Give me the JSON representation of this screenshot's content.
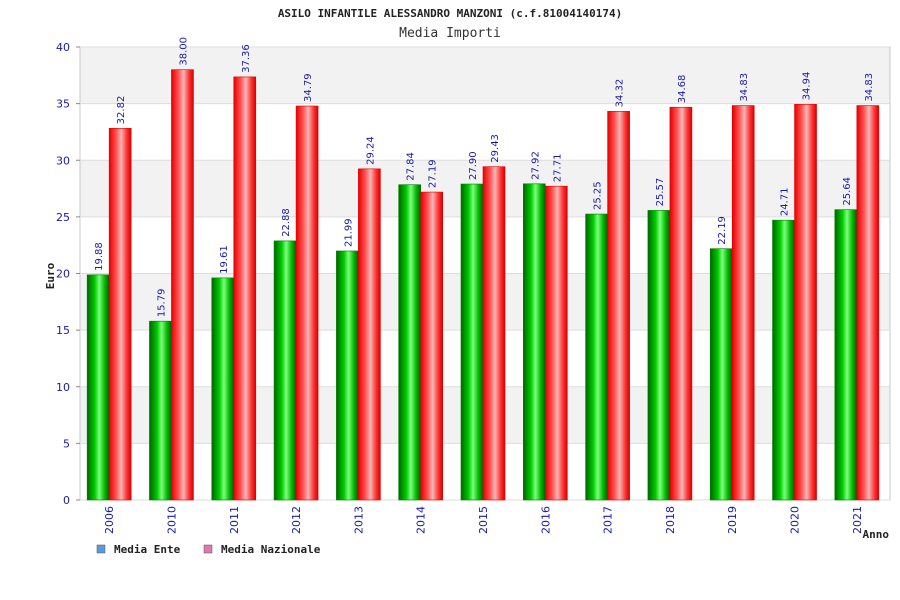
{
  "chart_data": {
    "type": "bar",
    "title": "ASILO INFANTILE ALESSANDRO MANZONI (c.f.81004140174)",
    "subtitle": "Media Importi",
    "xlabel": "Anno",
    "ylabel": "Euro",
    "ylim": [
      0,
      40
    ],
    "yticks": [
      "0",
      "5",
      "10",
      "15",
      "20",
      "25",
      "30",
      "35",
      "40"
    ],
    "categories": [
      "2006",
      "2010",
      "2011",
      "2012",
      "2013",
      "2014",
      "2015",
      "2016",
      "2017",
      "2018",
      "2019",
      "2020",
      "2021"
    ],
    "series": [
      {
        "name": "Media Ente",
        "color": "#00c000",
        "legend_color": "#5b9bd5",
        "values": [
          19.88,
          15.79,
          19.61,
          22.88,
          21.99,
          27.84,
          27.9,
          27.92,
          25.25,
          25.57,
          22.19,
          24.71,
          25.64
        ],
        "labels": [
          "19.88",
          "15.79",
          "19.61",
          "22.88",
          "21.99",
          "27.84",
          "27.90",
          "27.92",
          "25.25",
          "25.57",
          "22.19",
          "24.71",
          "25.64"
        ]
      },
      {
        "name": "Media Nazionale",
        "color": "#ff1a1a",
        "legend_color": "#d97bb0",
        "values": [
          32.82,
          38.0,
          37.36,
          34.79,
          29.24,
          27.19,
          29.43,
          27.71,
          34.32,
          34.68,
          34.83,
          34.94,
          34.83
        ],
        "labels": [
          "32.82",
          "38.00",
          "37.36",
          "34.79",
          "29.24",
          "27.19",
          "29.43",
          "27.71",
          "34.32",
          "34.68",
          "34.83",
          "34.94",
          "34.83"
        ]
      }
    ],
    "grid": true,
    "legend_position": "bottom-left"
  }
}
